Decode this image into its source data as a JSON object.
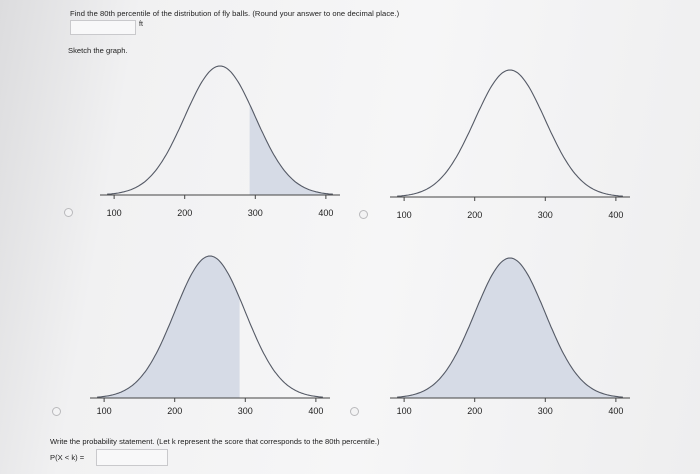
{
  "question": "Find the 80th percentile of the distribution of fly balls. (Round your answer to one decimal place.)",
  "answer_field": {
    "value": "",
    "unit": "ft"
  },
  "sketch_label": "Sketch the graph.",
  "graphs": [
    {
      "id": "top-left",
      "shading": "right-tail",
      "axis_min": 80,
      "axis_max": 420,
      "peak": 250,
      "sd": 50,
      "shade_from": 292,
      "shade_to": null,
      "ticks": [
        "100",
        "200",
        "300",
        "400"
      ],
      "tick_values": [
        100,
        200,
        300,
        400
      ]
    },
    {
      "id": "top-right",
      "shading": "none",
      "axis_min": 80,
      "axis_max": 420,
      "peak": 250,
      "sd": 50,
      "shade_from": null,
      "shade_to": null,
      "ticks": [
        "100",
        "200",
        "300",
        "400"
      ],
      "tick_values": [
        100,
        200,
        300,
        400
      ]
    },
    {
      "id": "bottom-left",
      "shading": "left-of-value",
      "axis_min": 80,
      "axis_max": 420,
      "peak": 250,
      "sd": 50,
      "shade_from": null,
      "shade_to": 292,
      "ticks": [
        "100",
        "200",
        "300",
        "400"
      ],
      "tick_values": [
        100,
        200,
        300,
        400
      ]
    },
    {
      "id": "bottom-right",
      "shading": "full",
      "axis_min": 80,
      "axis_max": 420,
      "peak": 250,
      "sd": 50,
      "shade_from": null,
      "shade_to": null,
      "ticks": [
        "100",
        "200",
        "300",
        "400"
      ],
      "tick_values": [
        100,
        200,
        300,
        400
      ]
    }
  ],
  "probability_prompt": "Write the probability statement. (Let k represent the score that corresponds to the 80th percentile.)",
  "probability_label": "P(X < k) =",
  "probability_value": "",
  "colors": {
    "curve": "#555a66",
    "shade": "#d6dbe6",
    "axis": "#444"
  }
}
